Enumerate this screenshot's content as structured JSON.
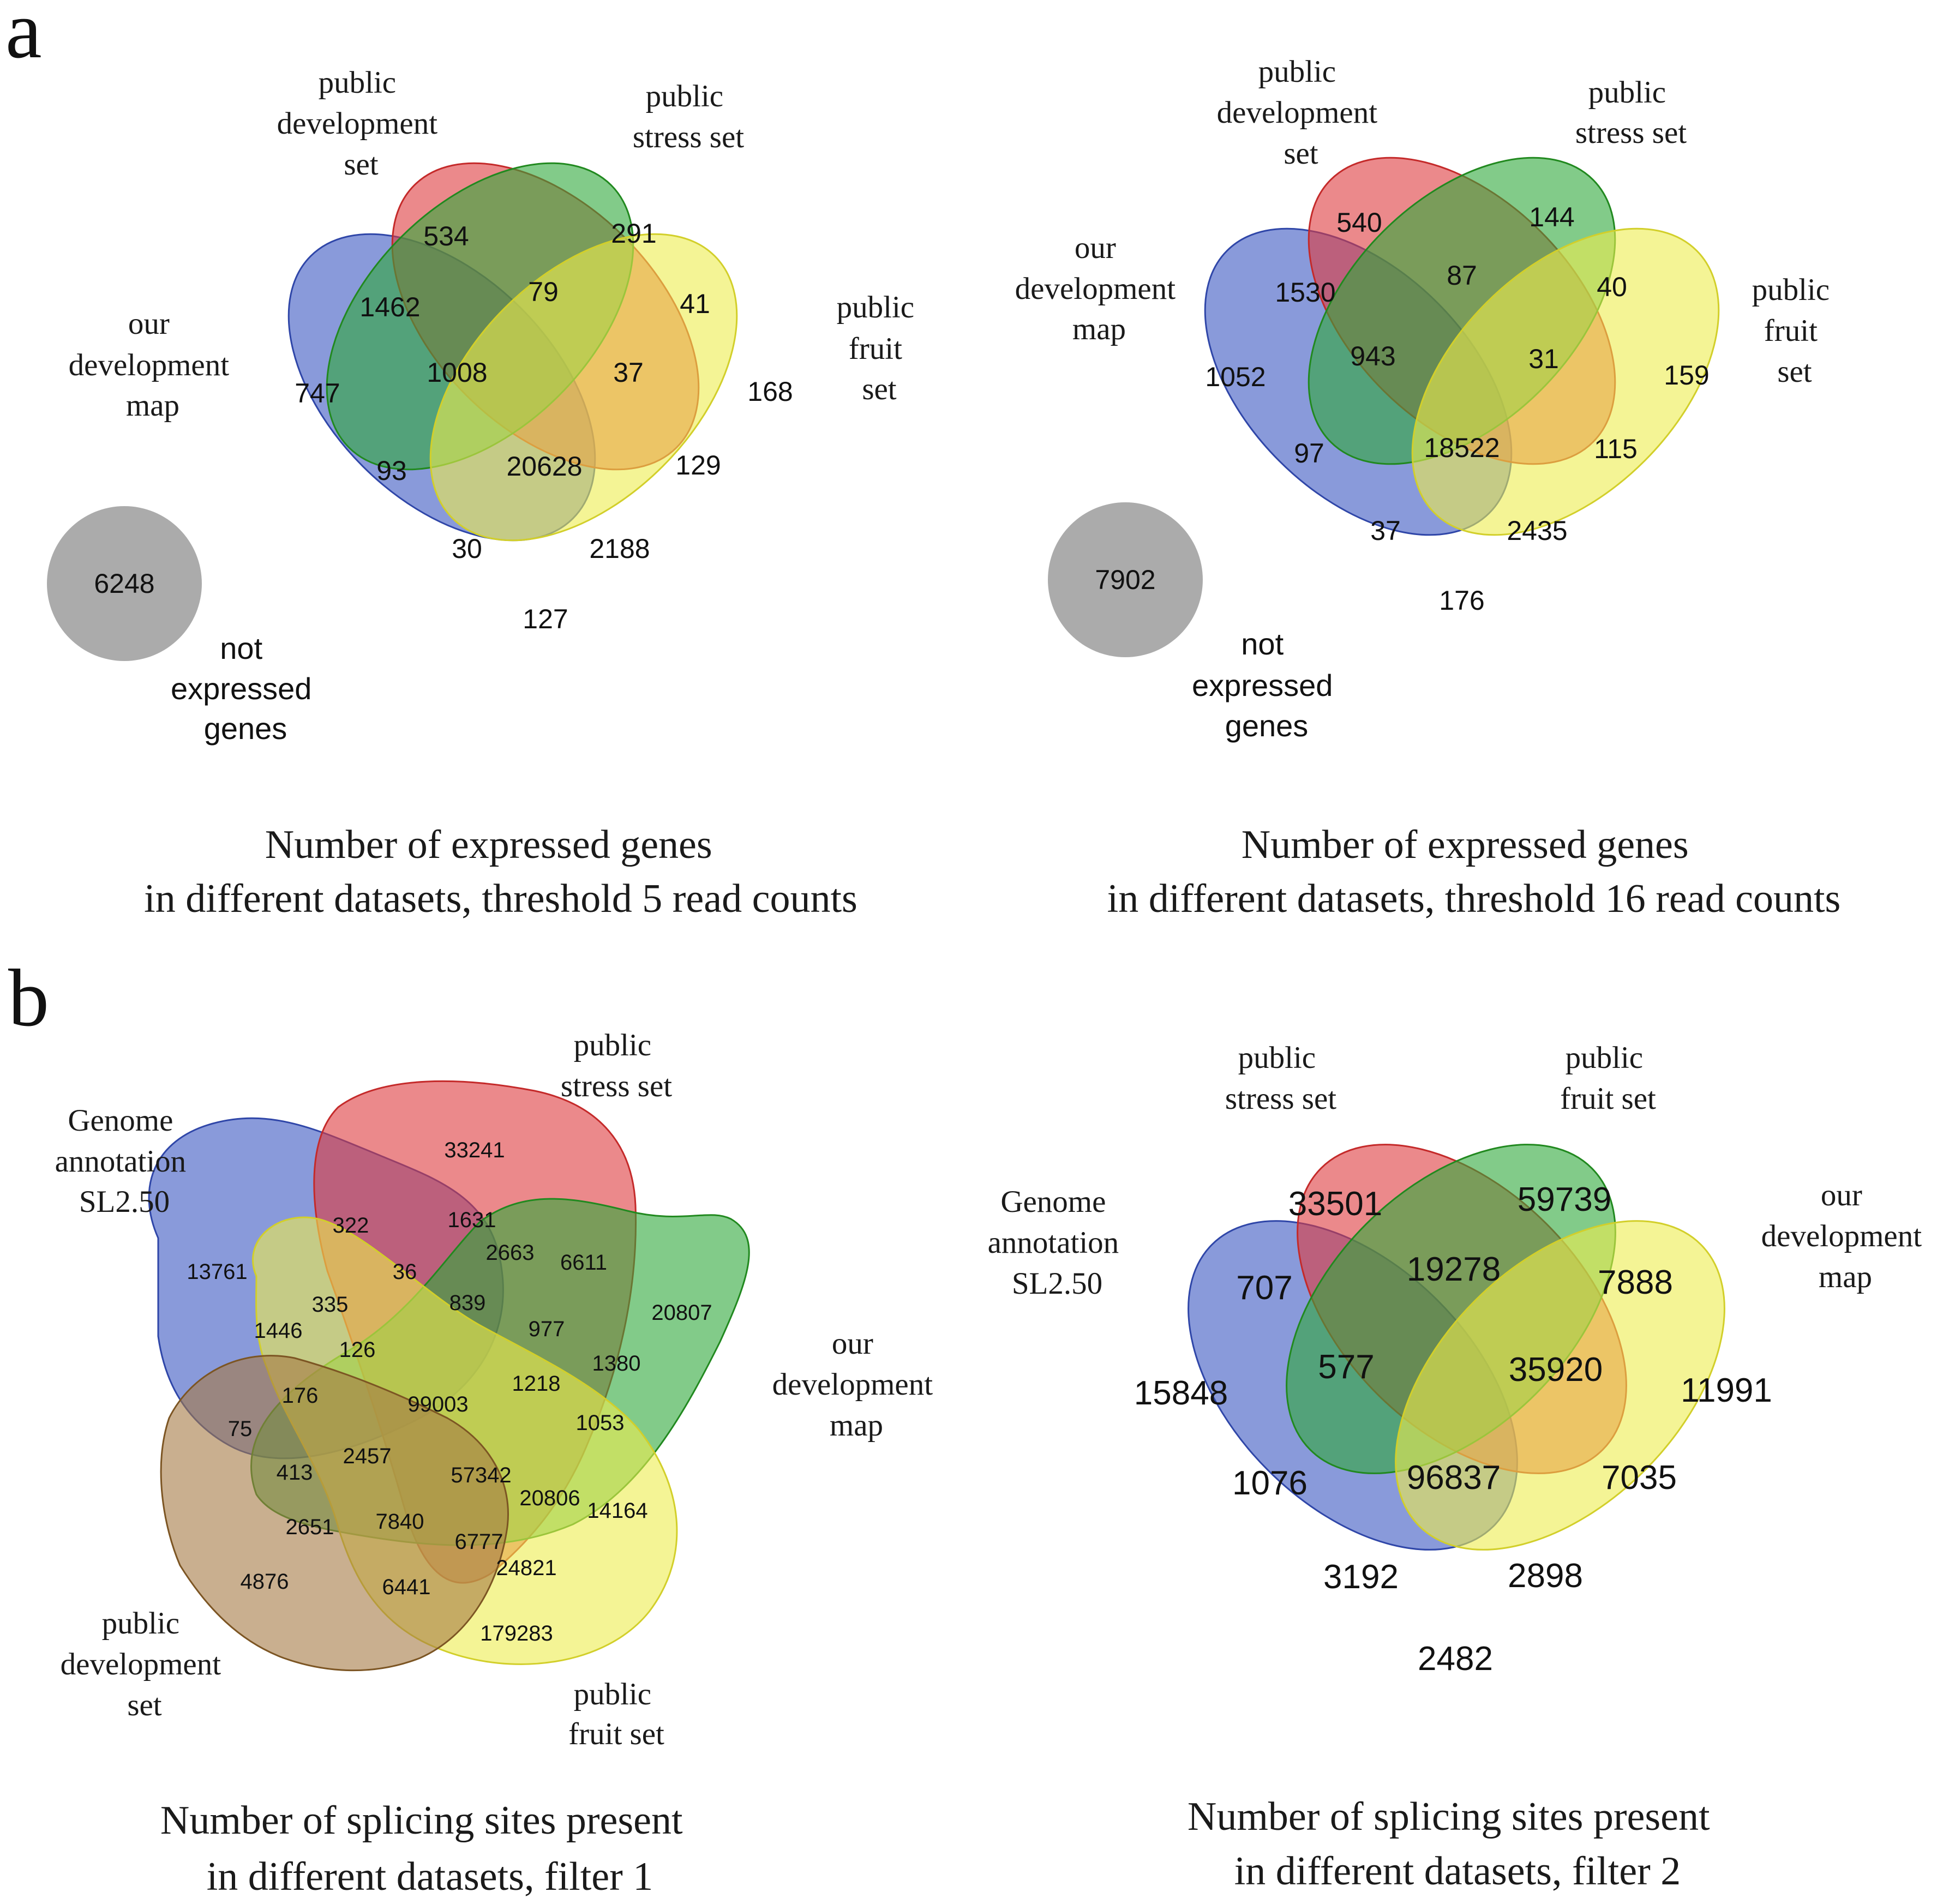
{
  "colors": {
    "blue": "#3a56c2",
    "red": "#de3b3d",
    "green": "#2fa83a",
    "yellow": "#eded4e",
    "brown": "#a57a45",
    "grey": "#ababab"
  },
  "panel_a": {
    "letter": "a",
    "left": {
      "labels": {
        "dev_map": [
          "our",
          "development",
          "map"
        ],
        "pub_dev": [
          "public",
          "development",
          "set"
        ],
        "pub_stress": [
          "public",
          "stress set"
        ],
        "pub_fruit": [
          "public",
          "fruit",
          "set"
        ]
      },
      "counts": [
        "534",
        "291",
        "1462",
        "79",
        "41",
        "747",
        "1008",
        "37",
        "168",
        "93",
        "20628",
        "129",
        "30",
        "2188",
        "127"
      ],
      "not_expressed": "6248",
      "not_expressed_label": [
        "not",
        "expressed",
        "genes"
      ],
      "caption": [
        "Number of expressed genes",
        "in different  datasets, threshold 5 read counts"
      ]
    },
    "right": {
      "labels": {
        "dev_map": [
          "our",
          "development",
          "map"
        ],
        "pub_dev": [
          "public",
          "development",
          "set"
        ],
        "pub_stress": [
          "public",
          "stress set"
        ],
        "pub_fruit": [
          "public",
          "fruit",
          "set"
        ]
      },
      "counts": [
        "540",
        "144",
        "1530",
        "87",
        "40",
        "1052",
        "943",
        "31",
        "159",
        "97",
        "18522",
        "115",
        "37",
        "2435",
        "176"
      ],
      "not_expressed": "7902",
      "not_expressed_label": [
        "not",
        "expressed",
        "genes"
      ],
      "caption": [
        "Number of expressed genes",
        "in different  datasets, threshold 16 read counts"
      ]
    }
  },
  "panel_b": {
    "letter": "b",
    "left": {
      "labels": {
        "genome": [
          "Genome",
          "annotation",
          "SL2.50"
        ],
        "pub_stress": [
          "public",
          "stress set"
        ],
        "dev_map": [
          "our",
          "development",
          "map"
        ],
        "pub_dev": [
          "public",
          "development",
          "set"
        ],
        "pub_fruit": [
          "public",
          "fruit set"
        ]
      },
      "counts": [
        "33241",
        "322",
        "1631",
        "13761",
        "36",
        "2663",
        "6611",
        "335",
        "839",
        "20807",
        "1446",
        "977",
        "126",
        "1380",
        "1218",
        "176",
        "99003",
        "1053",
        "75",
        "2457",
        "413",
        "57342",
        "20806",
        "14164",
        "2651",
        "7840",
        "6777",
        "24821",
        "4876",
        "6441",
        "179283"
      ],
      "caption": [
        "Number of splicing sites present",
        "in different datasets, filter 1"
      ]
    },
    "right": {
      "labels": {
        "pub_stress": [
          "public",
          "stress set"
        ],
        "pub_fruit": [
          "public",
          "fruit set"
        ],
        "genome": [
          "Genome",
          "annotation",
          "SL2.50"
        ],
        "dev_map": [
          "our",
          "development",
          "map"
        ]
      },
      "counts": [
        "33501",
        "59739",
        "707",
        "19278",
        "7888",
        "15848",
        "577",
        "35920",
        "11991",
        "1076",
        "96837",
        "7035",
        "3192",
        "2898",
        "2482"
      ],
      "caption": [
        "Number of splicing sites present",
        "in different datasets, filter 2"
      ]
    }
  }
}
